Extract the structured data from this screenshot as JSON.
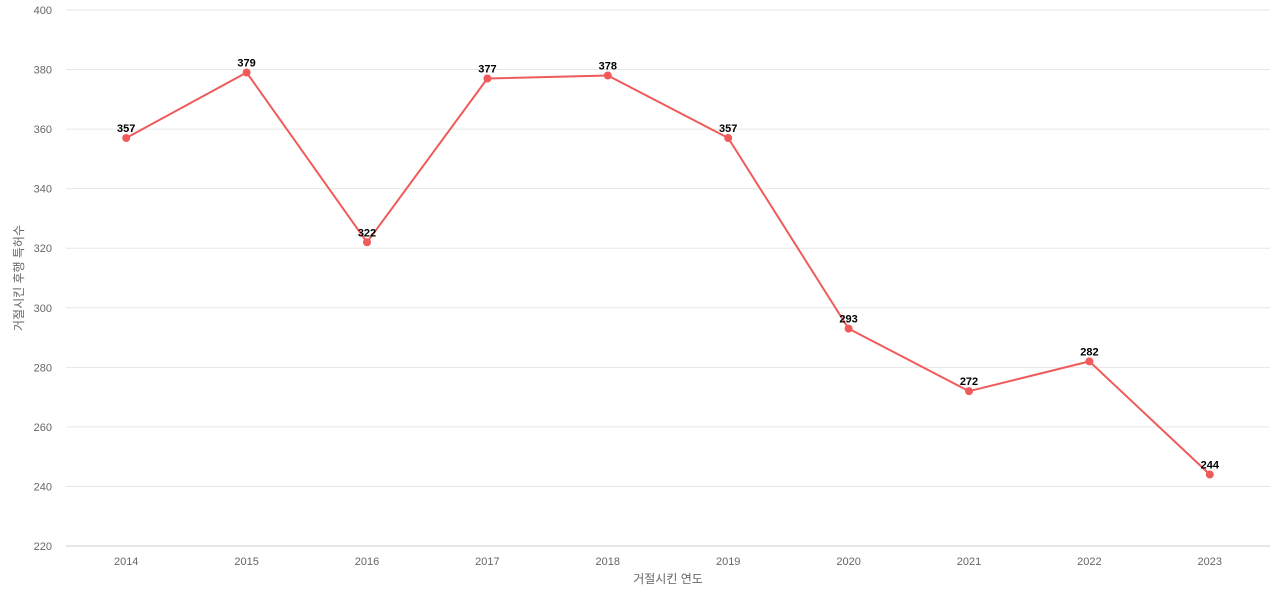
{
  "chart_data": {
    "type": "line",
    "title": "",
    "xlabel": "거절시킨 연도",
    "ylabel": "거절시킨 후행 특허수",
    "categories": [
      "2014",
      "2015",
      "2016",
      "2017",
      "2018",
      "2019",
      "2020",
      "2021",
      "2022",
      "2023"
    ],
    "series": [
      {
        "values": [
          357,
          379,
          322,
          377,
          378,
          357,
          293,
          272,
          282,
          244
        ]
      }
    ],
    "ylim": [
      220,
      400
    ],
    "yticks": [
      220,
      240,
      260,
      280,
      300,
      320,
      340,
      360,
      380,
      400
    ],
    "grid": true,
    "legend": "none",
    "colors": {
      "line": "#ef5b5b",
      "grid": "#e6e6e6",
      "text": "#666666"
    }
  }
}
